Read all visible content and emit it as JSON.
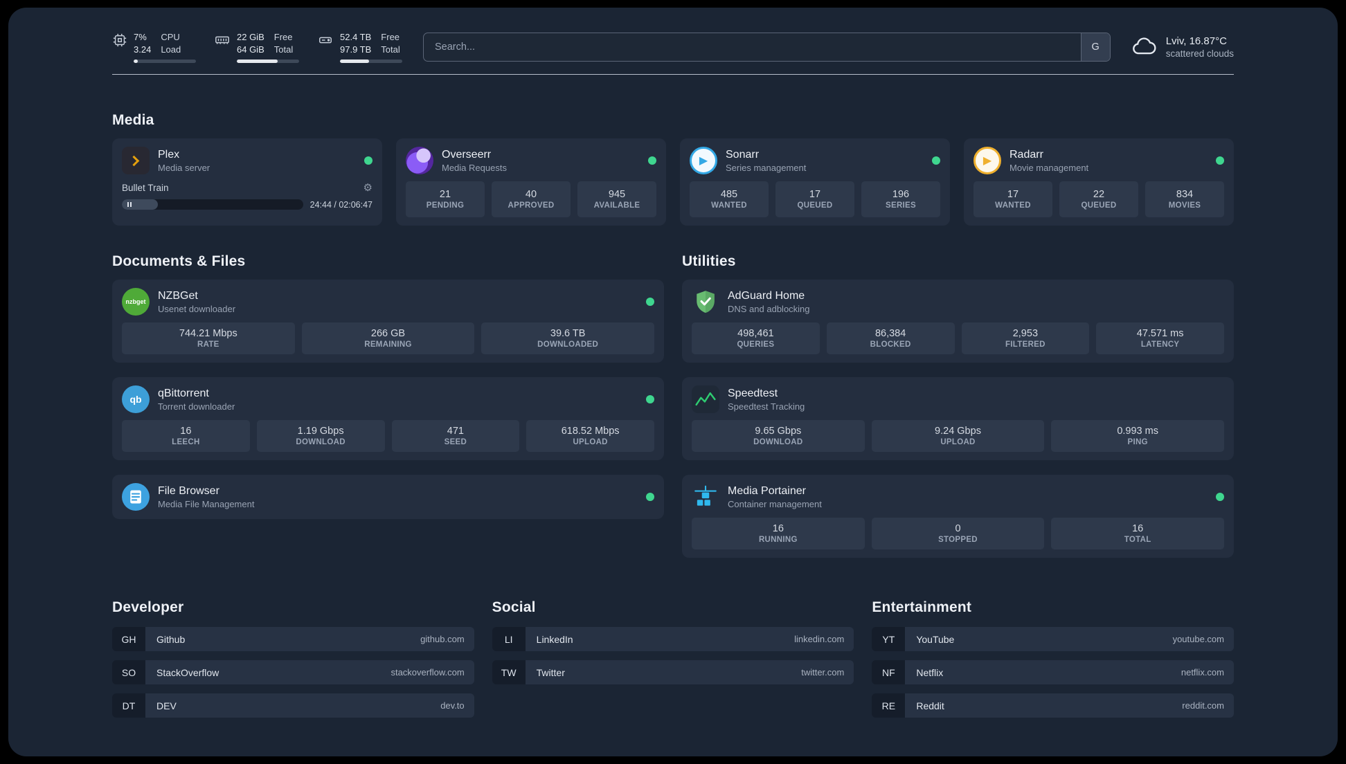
{
  "colors": {
    "status_online": "#3fd68f",
    "plex_accent": "#e5a00d"
  },
  "icons": {
    "gear": "⚙",
    "play": "▶",
    "nzbget_label": "nzbget",
    "qb_label": "qb"
  },
  "header": {
    "resources": [
      {
        "name": "cpu",
        "line1": "7%",
        "line2": "3.24",
        "label1": "CPU",
        "label2": "Load",
        "percent": 7
      },
      {
        "name": "memory",
        "line1": "22 GiB",
        "line2": "64 GiB",
        "label1": "Free",
        "label2": "Total",
        "percent": 66
      },
      {
        "name": "disk",
        "line1": "52.4 TB",
        "line2": "97.9 TB",
        "label1": "Free",
        "label2": "Total",
        "percent": 47
      }
    ],
    "search": {
      "placeholder": "Search...",
      "provider_label": "G"
    },
    "weather": {
      "location": "Lviv, 16.87°C",
      "condition": "scattered clouds"
    }
  },
  "media": {
    "title": "Media",
    "plex": {
      "title": "Plex",
      "subtitle": "Media server",
      "now_playing": {
        "track": "Bullet Train",
        "time": "24:44 / 02:06:47",
        "progress_percent": 20
      }
    },
    "overseerr": {
      "title": "Overseerr",
      "subtitle": "Media Requests",
      "stats": [
        {
          "value": "21",
          "label": "PENDING"
        },
        {
          "value": "40",
          "label": "APPROVED"
        },
        {
          "value": "945",
          "label": "AVAILABLE"
        }
      ]
    },
    "sonarr": {
      "title": "Sonarr",
      "subtitle": "Series management",
      "stats": [
        {
          "value": "485",
          "label": "WANTED"
        },
        {
          "value": "17",
          "label": "QUEUED"
        },
        {
          "value": "196",
          "label": "SERIES"
        }
      ]
    },
    "radarr": {
      "title": "Radarr",
      "subtitle": "Movie management",
      "stats": [
        {
          "value": "17",
          "label": "WANTED"
        },
        {
          "value": "22",
          "label": "QUEUED"
        },
        {
          "value": "834",
          "label": "MOVIES"
        }
      ]
    }
  },
  "documents": {
    "title": "Documents & Files",
    "nzbget": {
      "title": "NZBGet",
      "subtitle": "Usenet downloader",
      "stats": [
        {
          "value": "744.21 Mbps",
          "label": "RATE"
        },
        {
          "value": "266 GB",
          "label": "REMAINING"
        },
        {
          "value": "39.6 TB",
          "label": "DOWNLOADED"
        }
      ]
    },
    "qbittorrent": {
      "title": "qBittorrent",
      "subtitle": "Torrent downloader",
      "stats": [
        {
          "value": "16",
          "label": "LEECH"
        },
        {
          "value": "1.19 Gbps",
          "label": "DOWNLOAD"
        },
        {
          "value": "471",
          "label": "SEED"
        },
        {
          "value": "618.52 Mbps",
          "label": "UPLOAD"
        }
      ]
    },
    "filebrowser": {
      "title": "File Browser",
      "subtitle": "Media File Management"
    }
  },
  "utilities": {
    "title": "Utilities",
    "adguard": {
      "title": "AdGuard Home",
      "subtitle": "DNS and adblocking",
      "stats": [
        {
          "value": "498,461",
          "label": "QUERIES"
        },
        {
          "value": "86,384",
          "label": "BLOCKED"
        },
        {
          "value": "2,953",
          "label": "FILTERED"
        },
        {
          "value": "47.571 ms",
          "label": "LATENCY"
        }
      ]
    },
    "speedtest": {
      "title": "Speedtest",
      "subtitle": "Speedtest Tracking",
      "stats": [
        {
          "value": "9.65 Gbps",
          "label": "DOWNLOAD"
        },
        {
          "value": "9.24 Gbps",
          "label": "UPLOAD"
        },
        {
          "value": "0.993 ms",
          "label": "PING"
        }
      ]
    },
    "portainer": {
      "title": "Media Portainer",
      "subtitle": "Container management",
      "stats": [
        {
          "value": "16",
          "label": "RUNNING"
        },
        {
          "value": "0",
          "label": "STOPPED"
        },
        {
          "value": "16",
          "label": "TOTAL"
        }
      ]
    }
  },
  "bookmarks": {
    "developer": {
      "title": "Developer",
      "items": [
        {
          "abbr": "GH",
          "name": "Github",
          "domain": "github.com"
        },
        {
          "abbr": "SO",
          "name": "StackOverflow",
          "domain": "stackoverflow.com"
        },
        {
          "abbr": "DT",
          "name": "DEV",
          "domain": "dev.to"
        }
      ]
    },
    "social": {
      "title": "Social",
      "items": [
        {
          "abbr": "LI",
          "name": "LinkedIn",
          "domain": "linkedin.com"
        },
        {
          "abbr": "TW",
          "name": "Twitter",
          "domain": "twitter.com"
        }
      ]
    },
    "entertainment": {
      "title": "Entertainment",
      "items": [
        {
          "abbr": "YT",
          "name": "YouTube",
          "domain": "youtube.com"
        },
        {
          "abbr": "NF",
          "name": "Netflix",
          "domain": "netflix.com"
        },
        {
          "abbr": "RE",
          "name": "Reddit",
          "domain": "reddit.com"
        }
      ]
    }
  }
}
